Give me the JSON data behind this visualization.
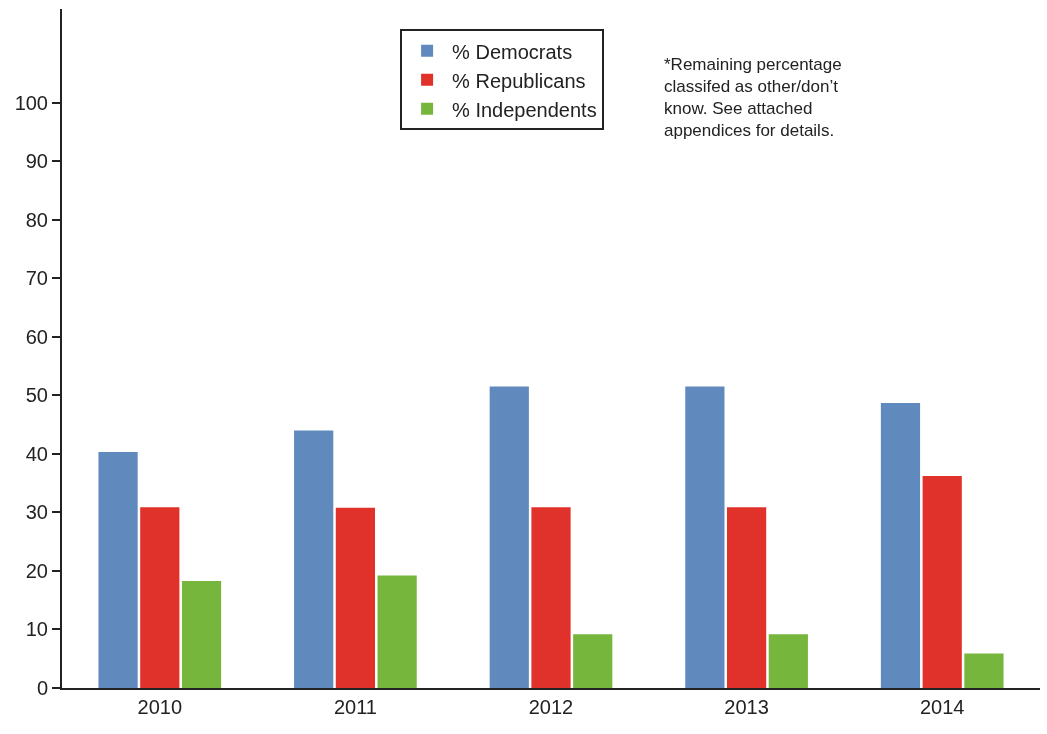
{
  "chart_data": {
    "type": "bar",
    "categories": [
      "2010",
      "2011",
      "2012",
      "2013",
      "2014"
    ],
    "series": [
      {
        "name": "% Democrats",
        "color": "#6089be",
        "values": [
          40.3,
          44,
          51.5,
          51.5,
          48.7
        ]
      },
      {
        "name": "% Republicans",
        "color": "#e0312b",
        "values": [
          30.9,
          30.8,
          30.9,
          30.9,
          36.2
        ]
      },
      {
        "name": "% Independents",
        "color": "#77b63c",
        "values": [
          18.3,
          19.2,
          9.2,
          9.2,
          5.9
        ]
      }
    ],
    "ylim": [
      0,
      116
    ],
    "yticks": [
      0,
      10,
      20,
      30,
      40,
      50,
      60,
      70,
      80,
      90,
      100
    ],
    "legend": "top",
    "annotations": [
      "*Remaining percentage\nclassifed as other/don’t\nknow. See attached\nappendices for details."
    ]
  }
}
